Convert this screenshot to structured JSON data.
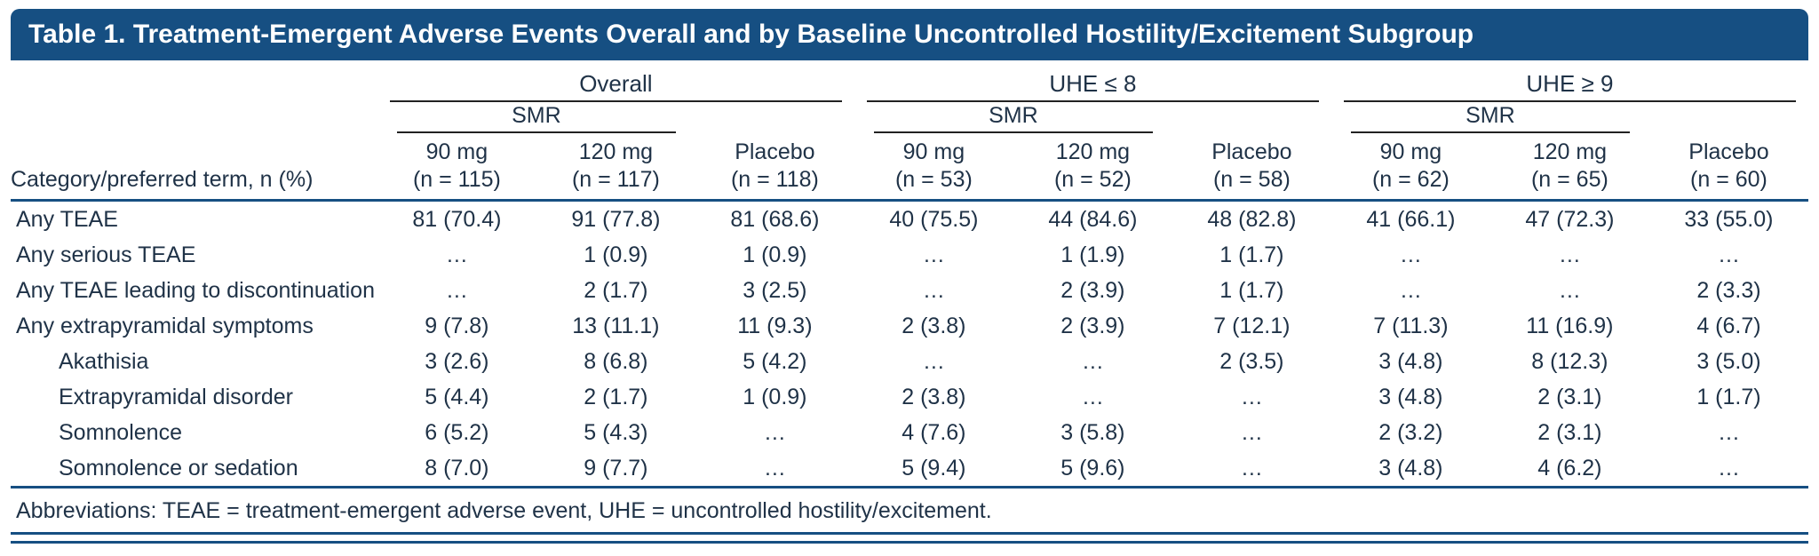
{
  "title": "Table 1. Treatment-Emergent Adverse Events Overall and by Baseline Uncontrolled Hostility/Excitement Subgroup",
  "table": {
    "stub_header": "Category/preferred term, n (%)",
    "groups": [
      {
        "label": "Overall",
        "treatment_label": "SMR",
        "columns": [
          {
            "dose": "90 mg",
            "n": "(n = 115)"
          },
          {
            "dose": "120 mg",
            "n": "(n = 117)"
          },
          {
            "dose": "Placebo",
            "n": "(n = 118)"
          }
        ]
      },
      {
        "label": "UHE ≤ 8",
        "treatment_label": "SMR",
        "columns": [
          {
            "dose": "90 mg",
            "n": "(n = 53)"
          },
          {
            "dose": "120 mg",
            "n": "(n = 52)"
          },
          {
            "dose": "Placebo",
            "n": "(n = 58)"
          }
        ]
      },
      {
        "label": "UHE ≥ 9",
        "treatment_label": "SMR",
        "columns": [
          {
            "dose": "90 mg",
            "n": "(n = 62)"
          },
          {
            "dose": "120 mg",
            "n": "(n = 65)"
          },
          {
            "dose": "Placebo",
            "n": "(n = 60)"
          }
        ]
      }
    ],
    "rows": [
      {
        "label": "Any TEAE",
        "indent": false,
        "values": [
          "81 (70.4)",
          "91 (77.8)",
          "81 (68.6)",
          "40 (75.5)",
          "44 (84.6)",
          "48 (82.8)",
          "41 (66.1)",
          "47 (72.3)",
          "33 (55.0)"
        ]
      },
      {
        "label": "Any serious TEAE",
        "indent": false,
        "values": [
          "…",
          "1 (0.9)",
          "1 (0.9)",
          "…",
          "1 (1.9)",
          "1 (1.7)",
          "…",
          "…",
          "…"
        ]
      },
      {
        "label": "Any TEAE leading to discontinuation",
        "indent": false,
        "values": [
          "…",
          "2 (1.7)",
          "3 (2.5)",
          "…",
          "2 (3.9)",
          "1 (1.7)",
          "…",
          "…",
          "2 (3.3)"
        ]
      },
      {
        "label": "Any extrapyramidal symptoms",
        "indent": false,
        "values": [
          "9 (7.8)",
          "13 (11.1)",
          "11 (9.3)",
          "2 (3.8)",
          "2 (3.9)",
          "7 (12.1)",
          "7 (11.3)",
          "11 (16.9)",
          "4 (6.7)"
        ]
      },
      {
        "label": "Akathisia",
        "indent": true,
        "values": [
          "3 (2.6)",
          "8 (6.8)",
          "5 (4.2)",
          "…",
          "…",
          "2 (3.5)",
          "3 (4.8)",
          "8 (12.3)",
          "3 (5.0)"
        ]
      },
      {
        "label": "Extrapyramidal disorder",
        "indent": true,
        "values": [
          "5 (4.4)",
          "2 (1.7)",
          "1 (0.9)",
          "2 (3.8)",
          "…",
          "…",
          "3 (4.8)",
          "2 (3.1)",
          "1 (1.7)"
        ]
      },
      {
        "label": "Somnolence",
        "indent": true,
        "values": [
          "6 (5.2)",
          "5 (4.3)",
          "…",
          "4 (7.6)",
          "3 (5.8)",
          "…",
          "2 (3.2)",
          "2 (3.1)",
          "…"
        ]
      },
      {
        "label": "Somnolence or sedation",
        "indent": true,
        "values": [
          "8 (7.0)",
          "9 (7.7)",
          "…",
          "5 (9.4)",
          "5 (9.6)",
          "…",
          "3 (4.8)",
          "4 (6.2)",
          "…"
        ]
      }
    ],
    "footnote": "Abbreviations: TEAE = treatment-emergent adverse event, UHE = uncontrolled hostility/excitement."
  },
  "colors": {
    "title_bg": "#164f82",
    "rule_blue": "#164f82",
    "thin_rule": "#222222",
    "text": "#1f3247"
  }
}
